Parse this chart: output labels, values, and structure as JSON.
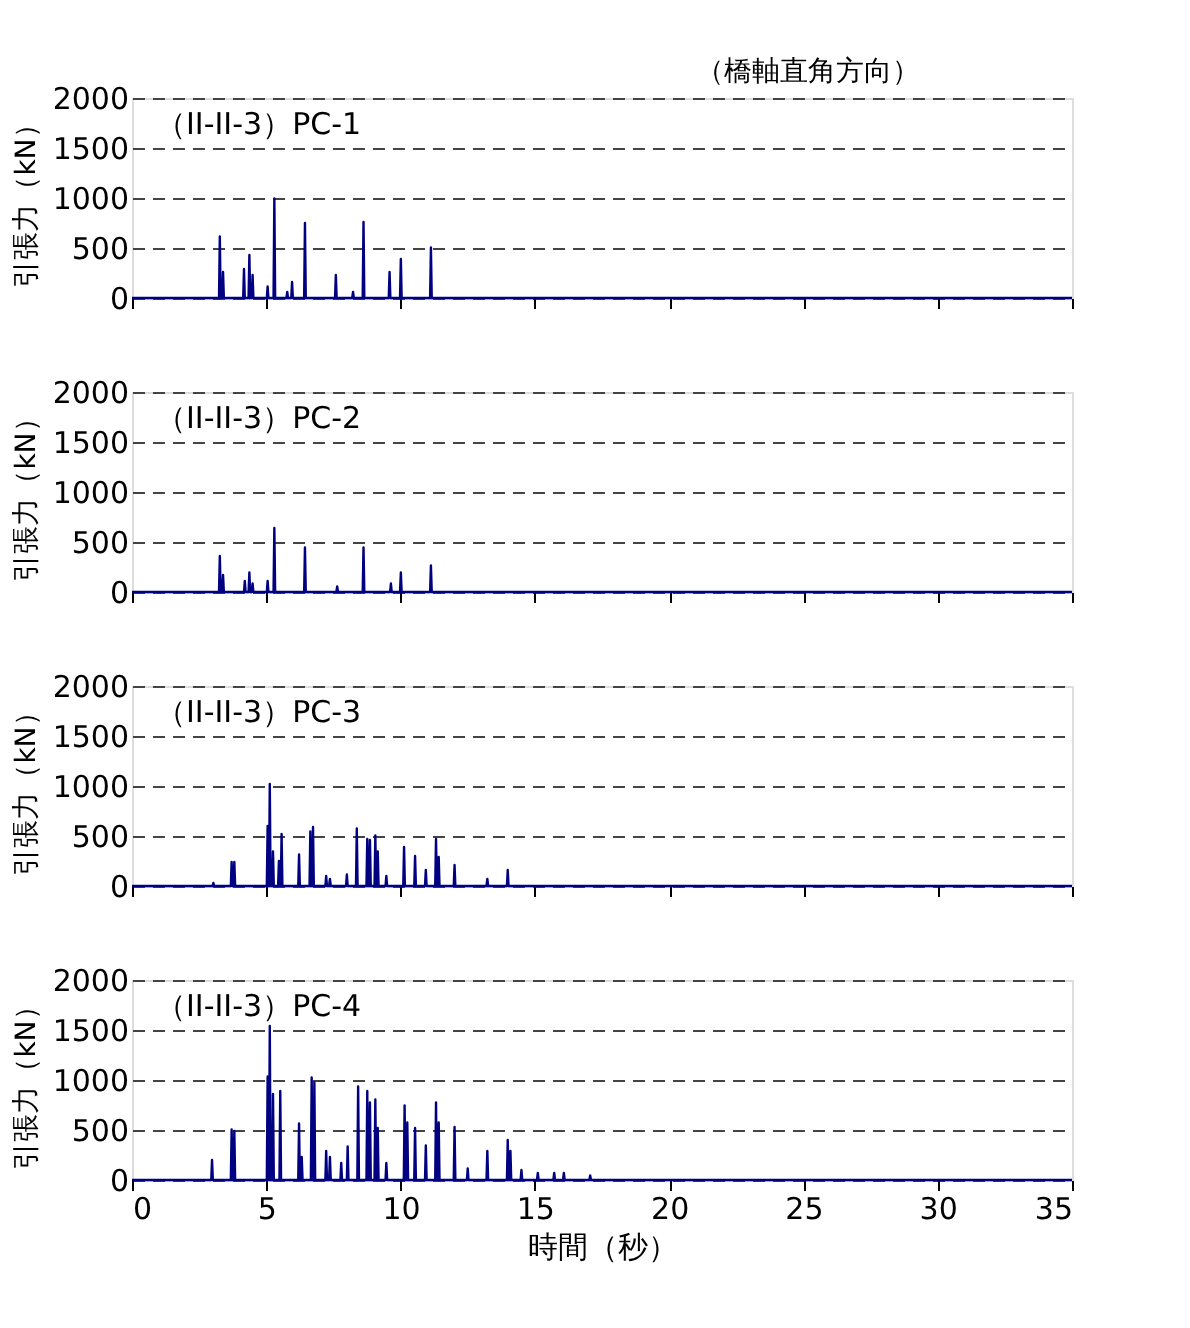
{
  "chart_data": [
    {
      "type": "line",
      "title": "（II-II-3）PC-1",
      "annotations": [
        "（橋軸直角方向）"
      ],
      "ylabel": "引張力（kN）",
      "xlim": [
        0,
        35
      ],
      "xticks": [
        0,
        5,
        10,
        15,
        20,
        25,
        30,
        35
      ],
      "ylim": [
        0,
        2000
      ],
      "yticks": [
        0,
        500,
        1000,
        1500,
        2000
      ],
      "grid": "y",
      "tick_labels": "y",
      "series": [
        {
          "color": "#000080",
          "x": [
            0,
            3.24,
            3.27,
            3.3,
            3.36,
            3.39,
            3.42,
            4.14,
            4.17,
            4.2,
            4.34,
            4.37,
            4.4,
            4.46,
            4.49,
            4.52,
            5.02,
            5.05,
            5.08,
            5.27,
            5.3,
            5.33,
            5.75,
            5.78,
            5.81,
            5.93,
            5.96,
            5.99,
            6.41,
            6.44,
            6.47,
            7.56,
            7.59,
            7.62,
            8.2,
            8.23,
            8.26,
            8.59,
            8.62,
            8.65,
            9.56,
            9.59,
            9.62,
            9.98,
            10.01,
            10.04,
            11.1,
            11.13,
            11.16,
            35
          ],
          "values": [
            0,
            0,
            615,
            0,
            0,
            260,
            0,
            0,
            290,
            0,
            0,
            430,
            0,
            0,
            230,
            0,
            0,
            115,
            0,
            0,
            995,
            0,
            0,
            60,
            0,
            0,
            160,
            0,
            0,
            750,
            0,
            0,
            230,
            0,
            0,
            60,
            0,
            0,
            760,
            0,
            0,
            260,
            0,
            0,
            390,
            0,
            0,
            505,
            0,
            0
          ]
        }
      ]
    },
    {
      "type": "line",
      "title": "（II-II-3）PC-2",
      "ylabel": "引張力（kN）",
      "xlim": [
        0,
        35
      ],
      "xticks": [
        0,
        5,
        10,
        15,
        20,
        25,
        30,
        35
      ],
      "ylim": [
        0,
        2000
      ],
      "yticks": [
        0,
        500,
        1000,
        1500,
        2000
      ],
      "grid": "y",
      "tick_labels": "y",
      "series": [
        {
          "color": "#000080",
          "x": [
            0,
            3.24,
            3.27,
            3.3,
            3.36,
            3.39,
            3.42,
            4.17,
            4.2,
            4.23,
            4.34,
            4.37,
            4.4,
            4.46,
            4.49,
            4.52,
            5.02,
            5.05,
            5.08,
            5.27,
            5.3,
            5.33,
            6.41,
            6.44,
            6.47,
            7.61,
            7.64,
            7.67,
            8.59,
            8.62,
            8.65,
            9.61,
            9.64,
            9.67,
            9.98,
            10.01,
            10.04,
            11.1,
            11.13,
            11.16,
            35
          ],
          "values": [
            0,
            0,
            360,
            0,
            0,
            170,
            0,
            0,
            110,
            0,
            0,
            195,
            0,
            0,
            85,
            0,
            0,
            110,
            0,
            0,
            640,
            0,
            0,
            445,
            0,
            0,
            55,
            0,
            0,
            445,
            0,
            0,
            85,
            0,
            0,
            195,
            0,
            0,
            265,
            0,
            0
          ]
        }
      ]
    },
    {
      "type": "line",
      "title": "（II-II-3）PC-3",
      "ylabel": "引張力（kN）",
      "xlim": [
        0,
        35
      ],
      "xticks": [
        0,
        5,
        10,
        15,
        20,
        25,
        30,
        35
      ],
      "ylim": [
        0,
        2000
      ],
      "yticks": [
        0,
        500,
        1000,
        1500,
        2000
      ],
      "grid": "y",
      "tick_labels": "y",
      "series": [
        {
          "color": "#000080",
          "x": [
            0,
            3.0,
            3.03,
            3.06,
            3.68,
            3.71,
            3.74,
            3.78,
            3.81,
            3.84,
            5.02,
            5.05,
            5.08,
            5.1,
            5.13,
            5.16,
            5.22,
            5.25,
            5.28,
            5.44,
            5.47,
            5.5,
            5.54,
            5.57,
            5.6,
            6.19,
            6.22,
            6.25,
            6.61,
            6.64,
            6.67,
            6.71,
            6.74,
            6.77,
            7.2,
            7.23,
            7.26,
            7.34,
            7.37,
            7.4,
            7.97,
            8.0,
            8.03,
            8.34,
            8.37,
            8.4,
            8.73,
            8.76,
            8.79,
            8.83,
            8.86,
            8.89,
            9.03,
            9.06,
            9.09,
            9.12,
            9.15,
            9.18,
            9.44,
            9.47,
            9.5,
            10.1,
            10.13,
            10.16,
            10.51,
            10.54,
            10.57,
            10.91,
            10.94,
            10.97,
            11.29,
            11.32,
            11.35,
            11.39,
            11.42,
            11.45,
            11.98,
            12.01,
            12.04,
            13.2,
            13.23,
            13.26,
            13.96,
            13.99,
            14.02,
            35
          ],
          "values": [
            0,
            0,
            30,
            0,
            0,
            240,
            0,
            0,
            240,
            0,
            0,
            600,
            0,
            0,
            1020,
            0,
            0,
            345,
            0,
            0,
            250,
            0,
            0,
            520,
            0,
            0,
            315,
            0,
            0,
            545,
            0,
            0,
            590,
            0,
            0,
            100,
            0,
            0,
            70,
            0,
            0,
            115,
            0,
            0,
            575,
            0,
            0,
            470,
            0,
            0,
            460,
            0,
            0,
            505,
            0,
            0,
            345,
            0,
            0,
            100,
            0,
            0,
            390,
            0,
            0,
            300,
            0,
            0,
            160,
            0,
            0,
            470,
            0,
            0,
            290,
            0,
            0,
            210,
            0,
            0,
            70,
            0,
            0,
            160,
            0,
            0
          ]
        }
      ]
    },
    {
      "type": "line",
      "title": "（II-II-3）PC-4",
      "ylabel": "引張力（kN）",
      "xlabel": "時間（秒）",
      "xlim": [
        0,
        35
      ],
      "xticks": [
        0,
        5,
        10,
        15,
        20,
        25,
        30,
        35
      ],
      "ylim": [
        0,
        2000
      ],
      "yticks": [
        0,
        500,
        1000,
        1500,
        2000
      ],
      "grid": "y",
      "series": [
        {
          "color": "#000080",
          "x": [
            0,
            2.95,
            2.98,
            3.01,
            3.68,
            3.71,
            3.74,
            3.78,
            3.81,
            3.84,
            5.02,
            5.05,
            5.08,
            5.1,
            5.13,
            5.16,
            5.22,
            5.25,
            5.28,
            5.49,
            5.52,
            5.55,
            6.19,
            6.22,
            6.25,
            6.29,
            6.32,
            6.35,
            6.66,
            6.69,
            6.72,
            6.76,
            6.79,
            6.82,
            7.2,
            7.23,
            7.26,
            7.34,
            7.37,
            7.4,
            7.76,
            7.79,
            7.82,
            8.0,
            8.03,
            8.06,
            8.39,
            8.42,
            8.45,
            8.73,
            8.76,
            8.79,
            8.83,
            8.86,
            8.89,
            9.03,
            9.06,
            9.09,
            9.12,
            9.15,
            9.18,
            9.44,
            9.47,
            9.5,
            10.12,
            10.15,
            10.18,
            10.22,
            10.25,
            10.28,
            10.51,
            10.54,
            10.57,
            10.91,
            10.94,
            10.97,
            11.29,
            11.32,
            11.35,
            11.39,
            11.42,
            11.45,
            11.98,
            12.01,
            12.04,
            12.47,
            12.5,
            12.53,
            13.2,
            13.23,
            13.26,
            13.96,
            13.99,
            14.02,
            14.06,
            14.09,
            14.12,
            14.47,
            14.5,
            14.53,
            15.08,
            15.11,
            15.14,
            15.69,
            15.72,
            15.75,
            16.05,
            16.08,
            16.11,
            17.03,
            17.06,
            17.09,
            35
          ],
          "values": [
            0,
            0,
            200,
            0,
            0,
            505,
            0,
            0,
            490,
            0,
            0,
            1035,
            0,
            0,
            1540,
            0,
            0,
            860,
            0,
            0,
            890,
            0,
            0,
            565,
            0,
            0,
            230,
            0,
            0,
            1025,
            0,
            0,
            975,
            0,
            0,
            290,
            0,
            0,
            230,
            0,
            0,
            170,
            0,
            0,
            335,
            0,
            0,
            935,
            0,
            0,
            890,
            0,
            0,
            775,
            0,
            0,
            805,
            0,
            0,
            520,
            0,
            0,
            170,
            0,
            0,
            745,
            0,
            0,
            575,
            0,
            0,
            520,
            0,
            0,
            345,
            0,
            0,
            775,
            0,
            0,
            575,
            0,
            0,
            530,
            0,
            0,
            115,
            0,
            0,
            290,
            0,
            0,
            400,
            0,
            0,
            290,
            0,
            0,
            100,
            0,
            0,
            70,
            0,
            0,
            70,
            0,
            0,
            70,
            0,
            0,
            45,
            0,
            0
          ]
        }
      ]
    }
  ]
}
